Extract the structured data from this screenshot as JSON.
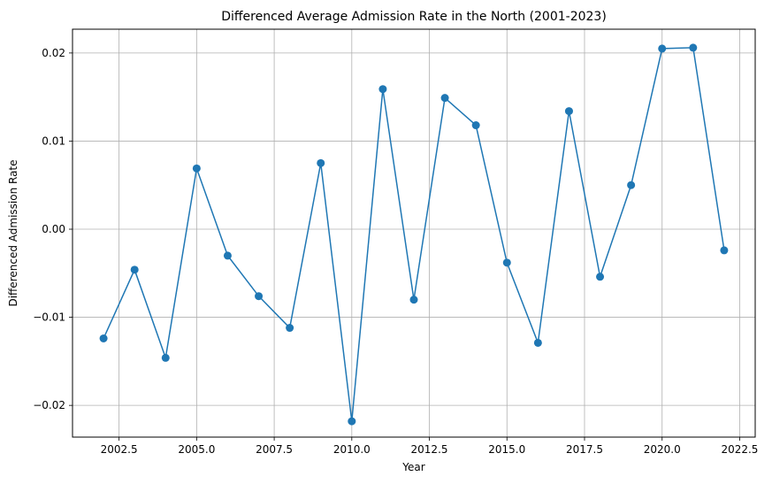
{
  "chart_data": {
    "type": "line",
    "title": "Differenced Average Admission Rate in the North (2001-2023)",
    "xlabel": "Year",
    "ylabel": "Differenced Admission Rate",
    "xlim": [
      2001,
      2023
    ],
    "ylim": [
      -0.0236,
      0.0227
    ],
    "x_ticks": [
      2002.5,
      2005.0,
      2007.5,
      2010.0,
      2012.5,
      2015.0,
      2017.5,
      2020.0,
      2022.5
    ],
    "x_tick_labels": [
      "2002.5",
      "2005.0",
      "2007.5",
      "2010.0",
      "2012.5",
      "2015.0",
      "2017.5",
      "2020.0",
      "2022.5"
    ],
    "y_ticks": [
      -0.02,
      -0.01,
      0.0,
      0.01,
      0.02
    ],
    "y_tick_labels": [
      "−0.02",
      "−0.01",
      "0.00",
      "0.01",
      "0.02"
    ],
    "grid": true,
    "marker": "circle",
    "color": "#1f77b4",
    "x": [
      2002,
      2003,
      2004,
      2005,
      2006,
      2007,
      2008,
      2009,
      2010,
      2011,
      2012,
      2013,
      2014,
      2015,
      2016,
      2017,
      2018,
      2019,
      2020,
      2021,
      2022
    ],
    "y": [
      -0.0124,
      -0.0046,
      -0.0146,
      0.0069,
      -0.003,
      -0.0076,
      -0.0112,
      0.0075,
      -0.0218,
      0.0159,
      -0.008,
      0.0149,
      0.0118,
      -0.0038,
      -0.0129,
      0.0134,
      -0.0054,
      0.005,
      0.0205,
      0.0206,
      -0.0024
    ]
  }
}
